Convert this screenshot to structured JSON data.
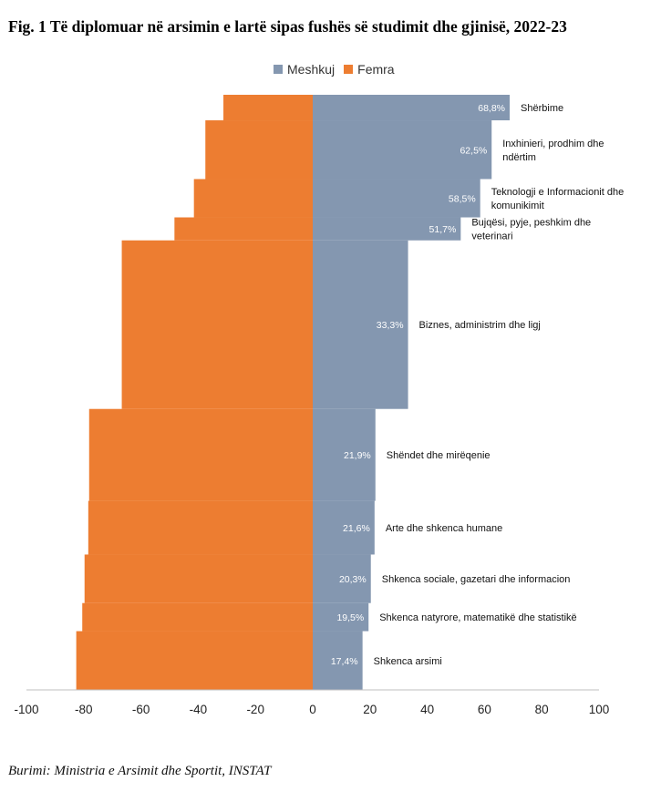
{
  "title": "Fig. 1 Të diplomuar në arsimin e lartë sipas fushës së studimit dhe gjinisë, 2022-23",
  "source": "Burimi: Ministria e Arsimit dhe Sportit, INSTAT",
  "colors": {
    "male": "#8497B0",
    "female": "#ED7D31",
    "axis": "#bfbfbf"
  },
  "chart_data": {
    "type": "bar",
    "orientation": "horizontal-population-pyramid",
    "categories": [
      "Shërbime",
      "Inxhinieri, prodhim dhe ndërtim",
      "Teknologji e Informacionit dhe komunikimit",
      "Bujqësi, pyje, peshkim dhe veterinari",
      "Biznes, administrim dhe ligj",
      "Shëndet dhe mirëqenie",
      "Arte dhe shkenca humane",
      "Shkenca sociale, gazetari dhe informacion",
      "Shkenca natyrore, matematikë dhe statistikë",
      "Shkenca arsimi"
    ],
    "category_lines": [
      [
        "Shërbime"
      ],
      [
        "Inxhinieri, prodhim dhe",
        "ndërtim"
      ],
      [
        "Teknologji e Informacionit dhe",
        "komunikimit"
      ],
      [
        "Bujqësi, pyje, peshkim dhe",
        "veterinari"
      ],
      [
        "Biznes, administrim dhe ligj"
      ],
      [
        "Shëndet dhe mirëqenie"
      ],
      [
        "Arte dhe shkenca humane"
      ],
      [
        "Shkenca sociale, gazetari dhe  informacion"
      ],
      [
        "Shkenca natyrore, matematikë dhe statistikë"
      ],
      [
        "Shkenca arsimi"
      ]
    ],
    "relative_widths": [
      1,
      2.3,
      1.5,
      0.9,
      6.6,
      3.6,
      2.1,
      1.9,
      1.1,
      2.3
    ],
    "series": [
      {
        "name": "Meshkuj",
        "values": [
          68.8,
          62.5,
          58.5,
          51.7,
          33.3,
          21.9,
          21.6,
          20.3,
          19.5,
          17.4
        ]
      },
      {
        "name": "Femra",
        "values": [
          -31.2,
          -37.5,
          -41.5,
          -48.3,
          -66.7,
          -78.1,
          -78.4,
          -79.7,
          -80.5,
          -82.6
        ]
      }
    ],
    "data_labels": [
      "68,8%",
      "62,5%",
      "58,5%",
      "51,7%",
      "33,3%",
      "21,9%",
      "21,6%",
      "20,3%",
      "19,5%",
      "17,4%"
    ],
    "xlim": [
      -100,
      100
    ],
    "xticks": [
      -100,
      -80,
      -60,
      -40,
      -20,
      0,
      20,
      40,
      60,
      80,
      100
    ],
    "xtick_labels": [
      "-100",
      "-80",
      "-60",
      "-40",
      "-20",
      "0",
      "20",
      "40",
      "60",
      "80",
      "100"
    ],
    "legend_position": "top-center",
    "grid": false
  }
}
